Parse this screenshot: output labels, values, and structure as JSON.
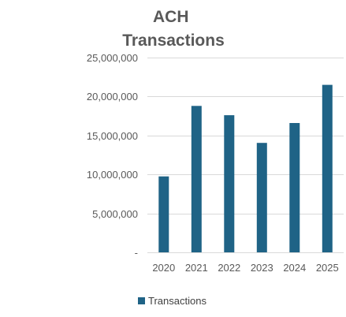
{
  "chart_data": {
    "type": "bar",
    "title_lines": [
      "ACH",
      "Transactions"
    ],
    "categories": [
      "2020",
      "2021",
      "2022",
      "2023",
      "2024",
      "2025"
    ],
    "series": [
      {
        "name": "Transactions",
        "values": [
          9750000,
          18800000,
          17600000,
          14050000,
          16600000,
          21500000
        ],
        "color": "#1f6386"
      }
    ],
    "y_ticks": [
      0,
      5000000,
      10000000,
      15000000,
      20000000,
      25000000
    ],
    "y_tick_labels": [
      "-",
      "5,000,000",
      "10,000,000",
      "15,000,000",
      "20,000,000",
      "25,000,000"
    ],
    "ylim": [
      0,
      25000000
    ],
    "xlabel": "",
    "ylabel": "",
    "grid": true,
    "gridline_color": "#d9d9d9",
    "legend_position": "bottom"
  }
}
